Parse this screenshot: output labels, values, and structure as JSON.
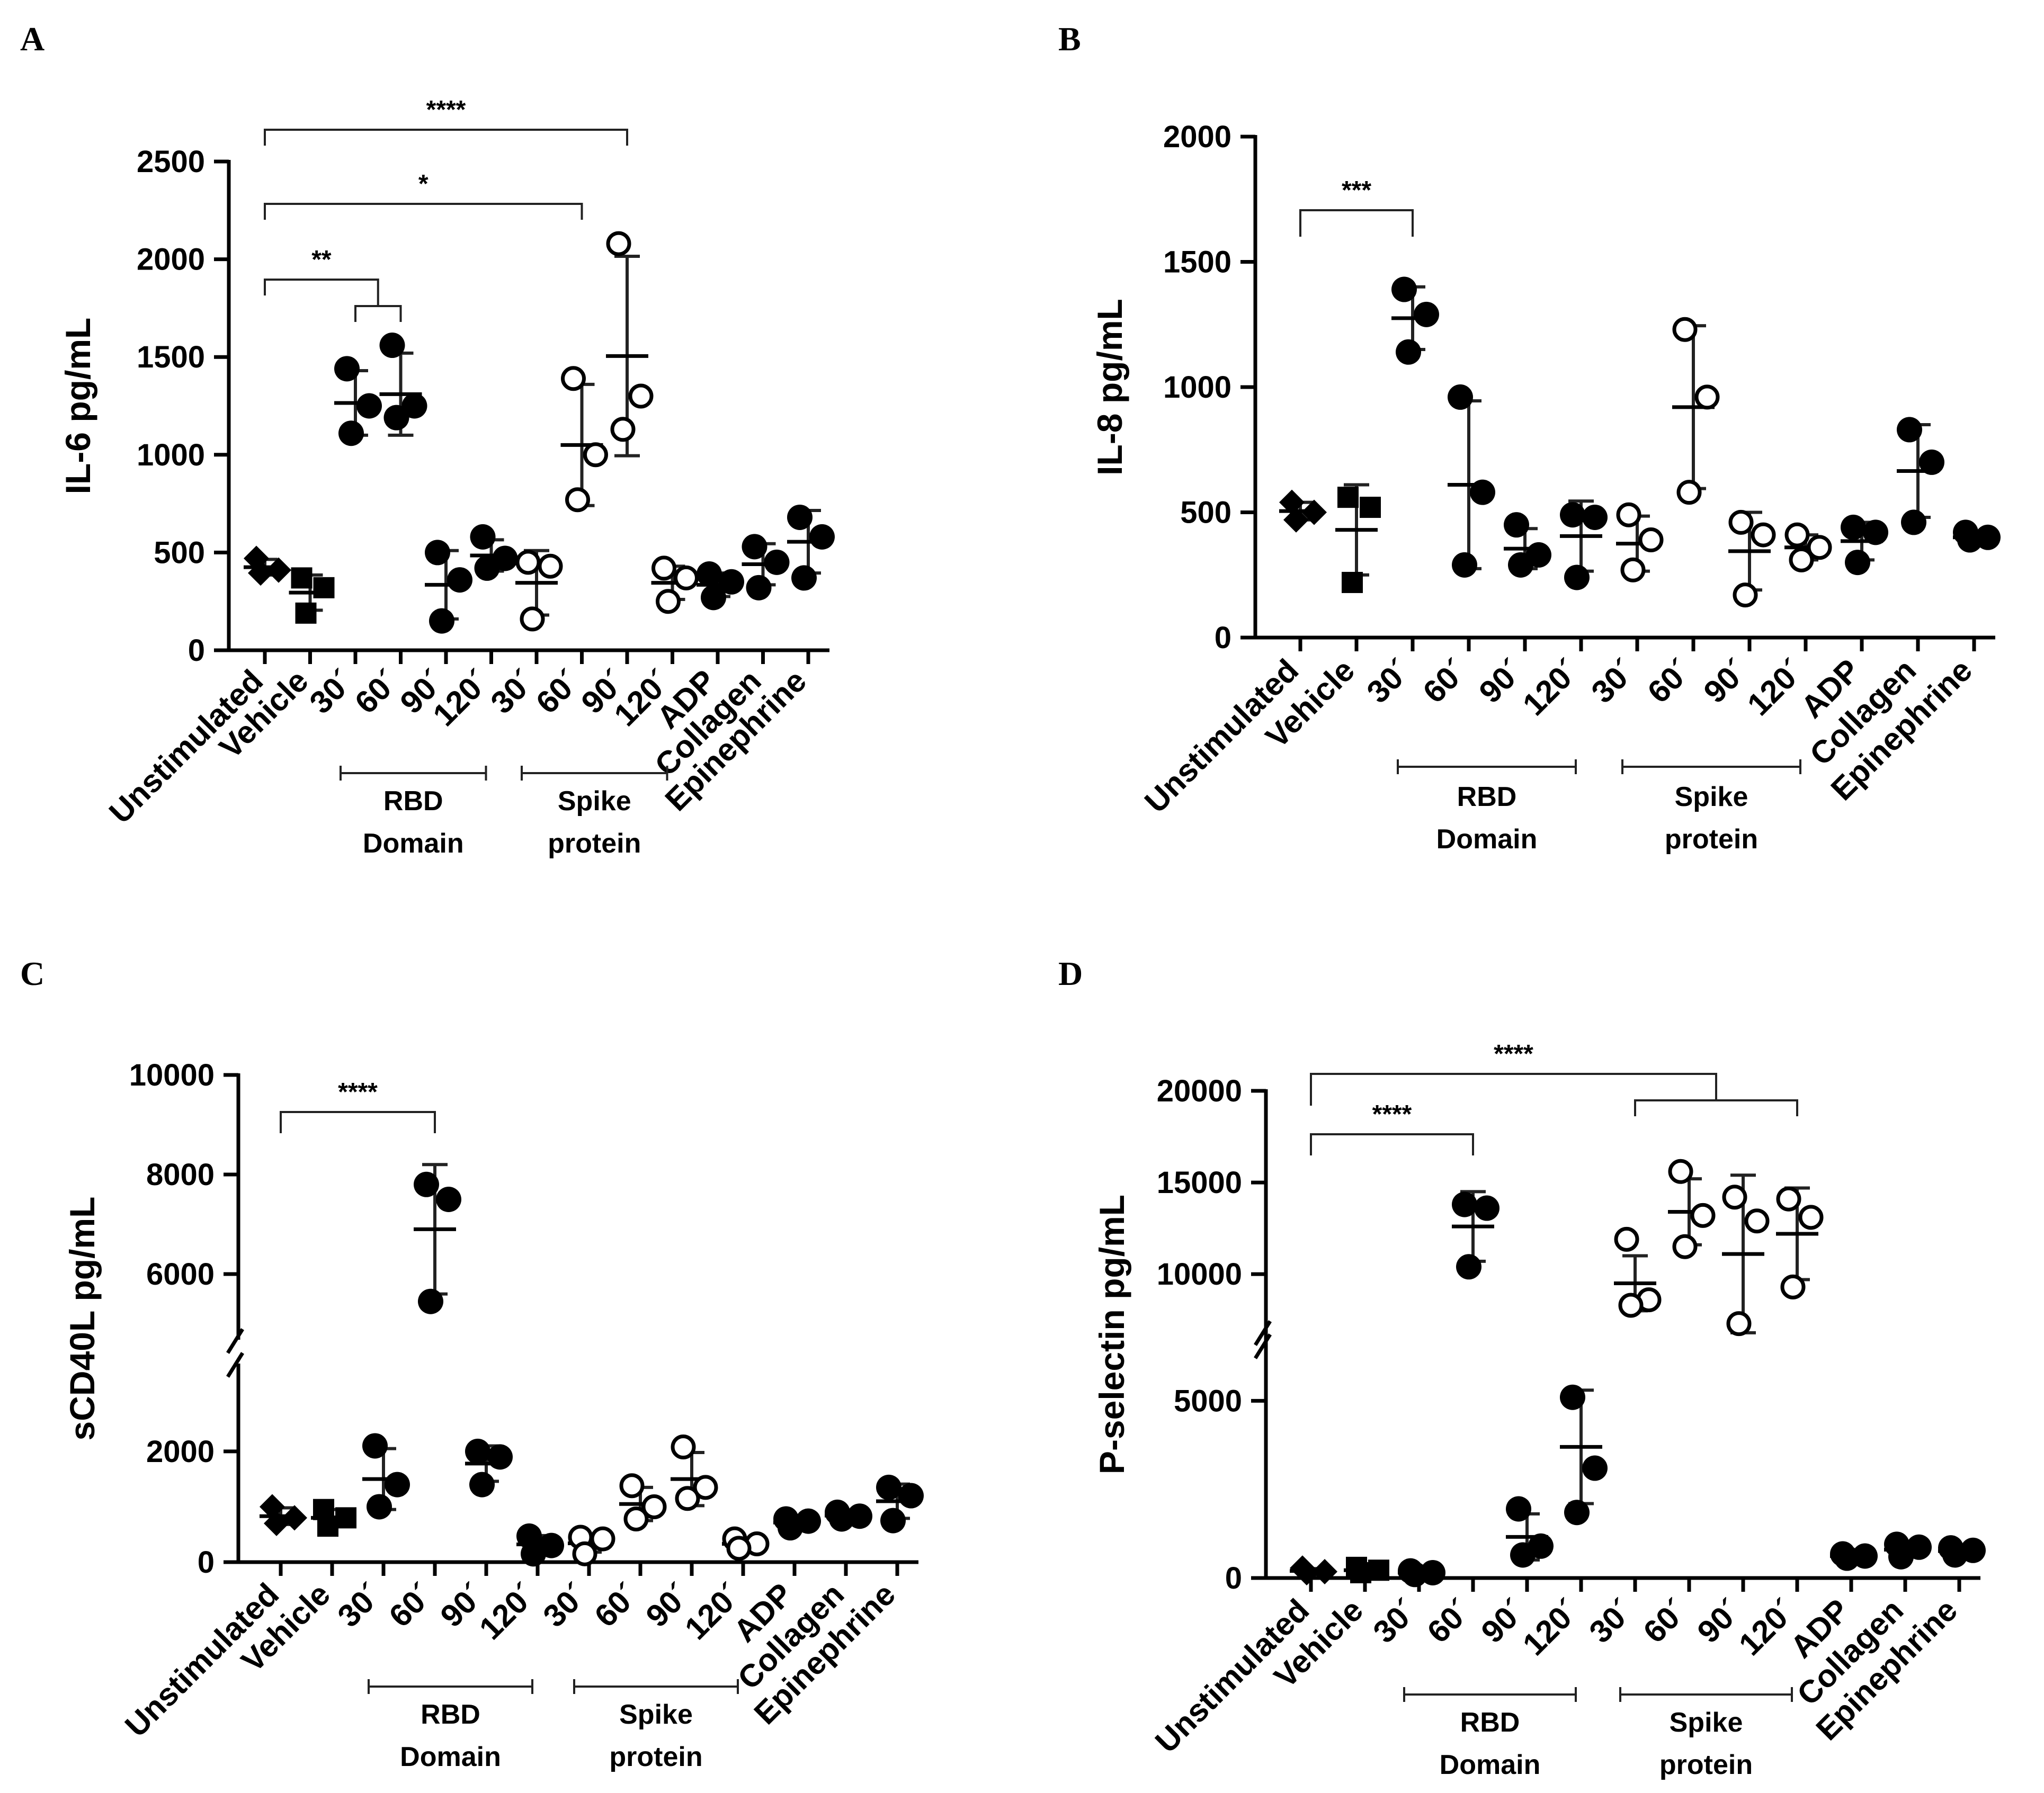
{
  "chart_data": [
    {
      "panel": "A",
      "type": "scatter",
      "ylabel": "IL-6 pg/mL",
      "ylim": [
        0,
        2500
      ],
      "yticks": [
        0,
        500,
        1000,
        1500,
        2000,
        2500
      ],
      "categories": [
        "Unstimulated",
        "Vehicle",
        "30´",
        "60´",
        "90´",
        "120´",
        "30´",
        "60´",
        "90´",
        "120´",
        "ADP",
        "Collagen",
        "Epinephrine"
      ],
      "groups": [
        {
          "label1": "RBD",
          "label2": "Domain",
          "from": 2,
          "to": 5
        },
        {
          "label1": "Spike",
          "label2": "protein",
          "from": 6,
          "to": 9
        }
      ],
      "significance": [
        {
          "text": "****",
          "from": [
            0
          ],
          "to": [
            8
          ]
        },
        {
          "text": "*",
          "from": [
            0
          ],
          "to": [
            7
          ]
        },
        {
          "text": "**",
          "from": [
            0
          ],
          "to": [
            2,
            3
          ]
        }
      ],
      "points": [
        {
          "values": [
            470,
            410,
            395
          ],
          "mean": 425,
          "sd": 40
        },
        {
          "values": [
            370,
            320,
            190
          ],
          "mean": 295,
          "sd": 90
        },
        {
          "values": [
            1440,
            1250,
            1110
          ],
          "mean": 1265,
          "sd": 165
        },
        {
          "values": [
            1560,
            1250,
            1190
          ],
          "mean": 1310,
          "sd": 210
        },
        {
          "values": [
            500,
            360,
            150
          ],
          "mean": 335,
          "sd": 175
        },
        {
          "values": [
            580,
            470,
            420
          ],
          "mean": 485,
          "sd": 80
        },
        {
          "values": [
            450,
            430,
            160
          ],
          "mean": 345,
          "sd": 165
        },
        {
          "values": [
            1390,
            1000,
            770
          ],
          "mean": 1050,
          "sd": 310
        },
        {
          "values": [
            2080,
            1300,
            1130
          ],
          "mean": 1505,
          "sd": 510
        },
        {
          "values": [
            420,
            370,
            250
          ],
          "mean": 345,
          "sd": 85
        },
        {
          "values": [
            390,
            350,
            270
          ],
          "mean": 335,
          "sd": 60
        },
        {
          "values": [
            530,
            450,
            320
          ],
          "mean": 440,
          "sd": 105
        },
        {
          "values": [
            680,
            580,
            370
          ],
          "mean": 555,
          "sd": 160
        }
      ]
    },
    {
      "panel": "B",
      "type": "scatter",
      "ylabel": "IL-8 pg/mL",
      "ylim": [
        0,
        2000
      ],
      "yticks": [
        0,
        500,
        1000,
        1500,
        2000
      ],
      "categories": [
        "Unstimulated",
        "Vehicle",
        "30´",
        "60´",
        "90´",
        "120´",
        "30´",
        "60´",
        "90´",
        "120´",
        "ADP",
        "Collagen",
        "Epinephrine"
      ],
      "groups": [
        {
          "label1": "RBD",
          "label2": "Domain",
          "from": 2,
          "to": 5
        },
        {
          "label1": "Spike",
          "label2": "protein",
          "from": 6,
          "to": 9
        }
      ],
      "significance": [
        {
          "text": "***",
          "from": [
            0
          ],
          "to": [
            2
          ]
        }
      ],
      "points": [
        {
          "values": [
            540,
            500,
            470
          ],
          "mean": 505,
          "sd": 35
        },
        {
          "values": [
            560,
            520,
            220
          ],
          "mean": 430,
          "sd": 180
        },
        {
          "values": [
            1390,
            1290,
            1140
          ],
          "mean": 1275,
          "sd": 125
        },
        {
          "values": [
            960,
            580,
            290
          ],
          "mean": 610,
          "sd": 335
        },
        {
          "values": [
            450,
            330,
            290
          ],
          "mean": 355,
          "sd": 80
        },
        {
          "values": [
            490,
            480,
            240
          ],
          "mean": 405,
          "sd": 140
        },
        {
          "values": [
            490,
            390,
            270
          ],
          "mean": 375,
          "sd": 110
        },
        {
          "values": [
            1230,
            960,
            580
          ],
          "mean": 920,
          "sd": 325
        },
        {
          "values": [
            460,
            410,
            170
          ],
          "mean": 345,
          "sd": 155
        },
        {
          "values": [
            410,
            360,
            310
          ],
          "mean": 360,
          "sd": 50
        },
        {
          "values": [
            440,
            420,
            300
          ],
          "mean": 385,
          "sd": 75
        },
        {
          "values": [
            830,
            700,
            460
          ],
          "mean": 665,
          "sd": 185
        },
        {
          "values": [
            420,
            400,
            390
          ],
          "mean": 400,
          "sd": 15
        }
      ]
    },
    {
      "panel": "C",
      "type": "scatter",
      "ylabel": "sCD40L pg/mL",
      "axis_break": true,
      "ylim_lower": [
        0,
        3300
      ],
      "ylim_upper": [
        5000,
        10000
      ],
      "yticks": [
        0,
        2000,
        6000,
        8000,
        10000
      ],
      "categories": [
        "Unstimulated",
        "Vehicle",
        "30´",
        "60´",
        "90´",
        "120´",
        "30´",
        "60´",
        "90´",
        "120´",
        "ADP",
        "Collagen",
        "Epinephrine"
      ],
      "groups": [
        {
          "label1": "RBD",
          "label2": "Domain",
          "from": 2,
          "to": 5
        },
        {
          "label1": "Spike",
          "label2": "protein",
          "from": 6,
          "to": 9
        }
      ],
      "significance": [
        {
          "text": "****",
          "from": [
            0
          ],
          "to": [
            3
          ]
        }
      ],
      "points": [
        {
          "values": [
            1000,
            800,
            700
          ],
          "mean": 830,
          "sd": 150
        },
        {
          "values": [
            950,
            800,
            650
          ],
          "mean": 800,
          "sd": 150
        },
        {
          "values": [
            2100,
            1400,
            1000
          ],
          "mean": 1500,
          "sd": 550
        },
        {
          "values": [
            7800,
            7500,
            5450
          ],
          "mean": 6900,
          "sd": 1300
        },
        {
          "values": [
            2000,
            1900,
            1400
          ],
          "mean": 1780,
          "sd": 320
        },
        {
          "values": [
            470,
            300,
            150
          ],
          "mean": 320,
          "sd": 160
        },
        {
          "values": [
            450,
            420,
            150
          ],
          "mean": 340,
          "sd": 160
        },
        {
          "values": [
            1380,
            1000,
            780
          ],
          "mean": 1050,
          "sd": 300
        },
        {
          "values": [
            2080,
            1350,
            1150
          ],
          "mean": 1500,
          "sd": 480
        },
        {
          "values": [
            420,
            330,
            250
          ],
          "mean": 330,
          "sd": 90
        },
        {
          "values": [
            780,
            740,
            620
          ],
          "mean": 715,
          "sd": 85
        },
        {
          "values": [
            900,
            830,
            780
          ],
          "mean": 840,
          "sd": 60
        },
        {
          "values": [
            1350,
            1200,
            750
          ],
          "mean": 1100,
          "sd": 310
        }
      ]
    },
    {
      "panel": "D",
      "type": "scatter",
      "ylabel": "P-selectin pg/mL",
      "axis_break": true,
      "ylim_lower": [
        0,
        6500
      ],
      "ylim_upper": [
        7000,
        20000
      ],
      "yticks": [
        0,
        5000,
        10000,
        15000,
        20000
      ],
      "categories": [
        "Unstimulated",
        "Vehicle",
        "30´",
        "60´",
        "90´",
        "120´",
        "30´",
        "60´",
        "90´",
        "120´",
        "ADP",
        "Collagen",
        "Epinephrine"
      ],
      "groups": [
        {
          "label1": "RBD",
          "label2": "Domain",
          "from": 2,
          "to": 5
        },
        {
          "label1": "Spike",
          "label2": "protein",
          "from": 6,
          "to": 9
        }
      ],
      "significance": [
        {
          "text": "****",
          "from": [
            0
          ],
          "to": [
            6,
            9
          ]
        },
        {
          "text": "****",
          "from": [
            0
          ],
          "to": [
            3
          ]
        }
      ],
      "points": [
        {
          "values": [
            280,
            180,
            150
          ],
          "mean": 200,
          "sd": 65
        },
        {
          "values": [
            300,
            220,
            150
          ],
          "mean": 220,
          "sd": 75
        },
        {
          "values": [
            200,
            150,
            100
          ],
          "mean": 150,
          "sd": 50
        },
        {
          "values": [
            13800,
            13600,
            10400
          ],
          "mean": 12600,
          "sd": 1900
        },
        {
          "values": [
            1950,
            900,
            650
          ],
          "mean": 1160,
          "sd": 650
        },
        {
          "values": [
            5100,
            3100,
            1850
          ],
          "mean": 3700,
          "sd": 1600
        },
        {
          "values": [
            11900,
            8600,
            8300
          ],
          "mean": 9500,
          "sd": 1500
        },
        {
          "values": [
            15600,
            13200,
            11500
          ],
          "mean": 13400,
          "sd": 1800
        },
        {
          "values": [
            14200,
            12900,
            7300
          ],
          "mean": 11100,
          "sd": 4300
        },
        {
          "values": [
            14100,
            13100,
            9300
          ],
          "mean": 12200,
          "sd": 2500
        },
        {
          "values": [
            680,
            620,
            560
          ],
          "mean": 620,
          "sd": 60
        },
        {
          "values": [
            950,
            870,
            600
          ],
          "mean": 800,
          "sd": 180
        },
        {
          "values": [
            850,
            780,
            650
          ],
          "mean": 760,
          "sd": 100
        }
      ]
    }
  ]
}
